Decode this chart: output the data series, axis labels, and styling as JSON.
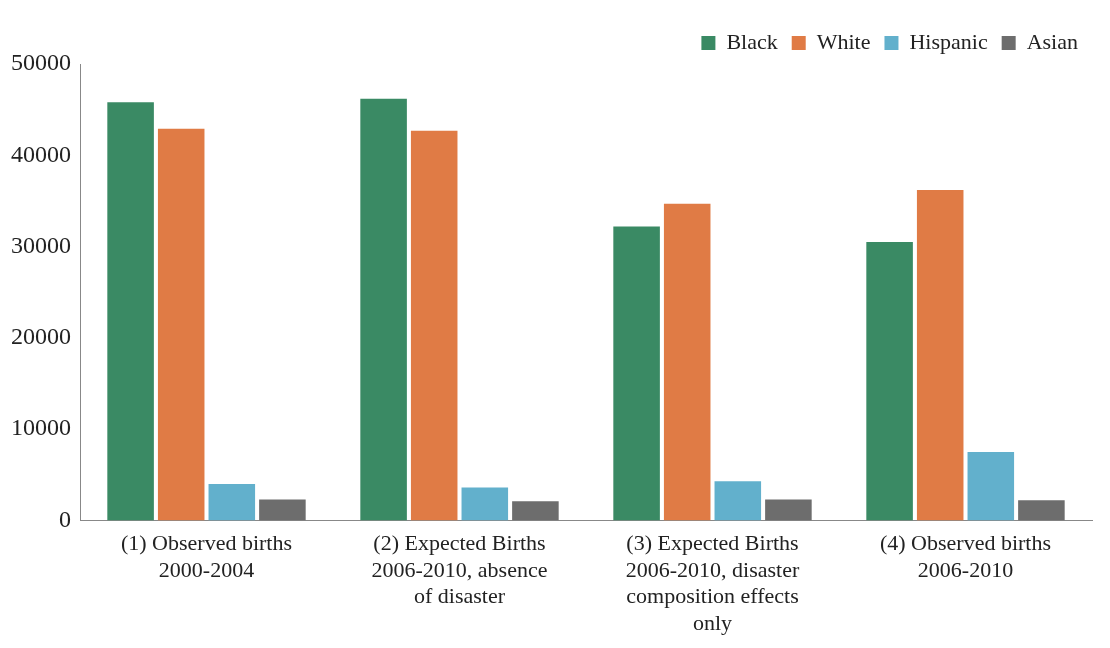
{
  "chart_data": {
    "type": "bar",
    "categories": [
      "(1) Observed births 2000-2004",
      "(2) Expected Births 2006-2010, absence of disaster",
      "(3) Expected Births 2006-2010, disaster composition effects only",
      "(4) Observed births 2006-2010"
    ],
    "series": [
      {
        "name": "Black",
        "color": "#3a8a64",
        "values": [
          45800,
          46200,
          32200,
          30500
        ]
      },
      {
        "name": "White",
        "color": "#e07b45",
        "values": [
          42900,
          42700,
          34700,
          36200
        ]
      },
      {
        "name": "Hispanic",
        "color": "#62b0cc",
        "values": [
          4000,
          3600,
          4300,
          7500
        ]
      },
      {
        "name": "Asian",
        "color": "#6d6d6d",
        "values": [
          2300,
          2100,
          2300,
          2200
        ]
      }
    ],
    "ylim": [
      0,
      50000
    ],
    "yticks": [
      0,
      10000,
      20000,
      30000,
      40000,
      50000
    ],
    "grid": false,
    "legend": "top right"
  }
}
